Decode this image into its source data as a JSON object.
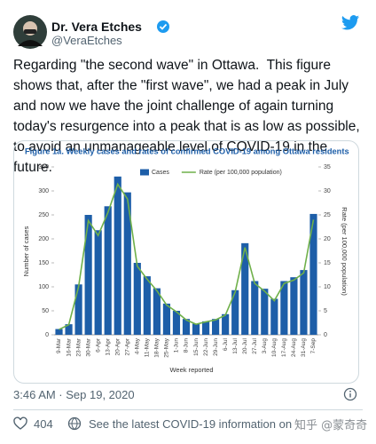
{
  "tweet": {
    "author": {
      "name": "Dr. Vera Etches",
      "handle": "@VeraEtches"
    },
    "text": "Regarding \"the second wave\" in Ottawa.  This figure shows that, after the \"first wave\", we had a peak in July and now we have the joint challenge of again turning today's resurgence into a peak that is as low as possible, to avoid an unmanageable level of COVID-19 in the future.",
    "timestamp": "3:46 AM · Sep 19, 2020",
    "likes": 404,
    "info_link": "See the latest COVID-19 information on Twitter"
  },
  "watermark": "知乎 @蒙奇奇",
  "chart_data": {
    "type": "bar",
    "title": "Figure 1a. Weekly cases and rates of confirmed COVID-19 among Ottawa residents",
    "categories": [
      "9-Mar",
      "16-Mar",
      "23-Mar",
      "30-Mar",
      "6-Apr",
      "13-Apr",
      "20-Apr",
      "27-Apr",
      "4-May",
      "11-May",
      "18-May",
      "25-May",
      "1-Jun",
      "8-Jun",
      "15-Jun",
      "22-Jun",
      "29-Jun",
      "6-Jul",
      "13-Jul",
      "20-Jul",
      "27-Jul",
      "3-Aug",
      "10-Aug",
      "17-Aug",
      "24-Aug",
      "31-Aug",
      "7-Sep"
    ],
    "series": [
      {
        "name": "Cases",
        "type": "bar",
        "color": "#1d5ea8",
        "values": [
          12,
          22,
          105,
          250,
          218,
          268,
          330,
          297,
          150,
          122,
          97,
          65,
          50,
          33,
          23,
          28,
          33,
          43,
          93,
          191,
          112,
          96,
          75,
          112,
          120,
          135,
          252
        ]
      },
      {
        "name": "Rate (per 100,000 population)",
        "type": "line",
        "axis": "y2",
        "color": "#6fb04a",
        "values": [
          1.1,
          2.1,
          10,
          23.8,
          20.7,
          25.5,
          31.4,
          28.3,
          14.3,
          11.6,
          9.2,
          6.2,
          4.8,
          3.1,
          2.2,
          2.7,
          3.1,
          4.1,
          8.9,
          18.2,
          10.7,
          9.1,
          7.1,
          10.7,
          11.4,
          12.9,
          24
        ]
      }
    ],
    "ylim": [
      0,
      350
    ],
    "yticks": [
      0,
      50,
      100,
      150,
      200,
      250,
      300,
      350
    ],
    "y2lim": [
      0,
      35
    ],
    "y2ticks": [
      0,
      5,
      10,
      15,
      20,
      25,
      30,
      35
    ],
    "ylabel": "Number of cases",
    "y2label": "Rate (per 100,000 population)",
    "xlabel": "Week reported",
    "legend": "top",
    "grid": false
  }
}
